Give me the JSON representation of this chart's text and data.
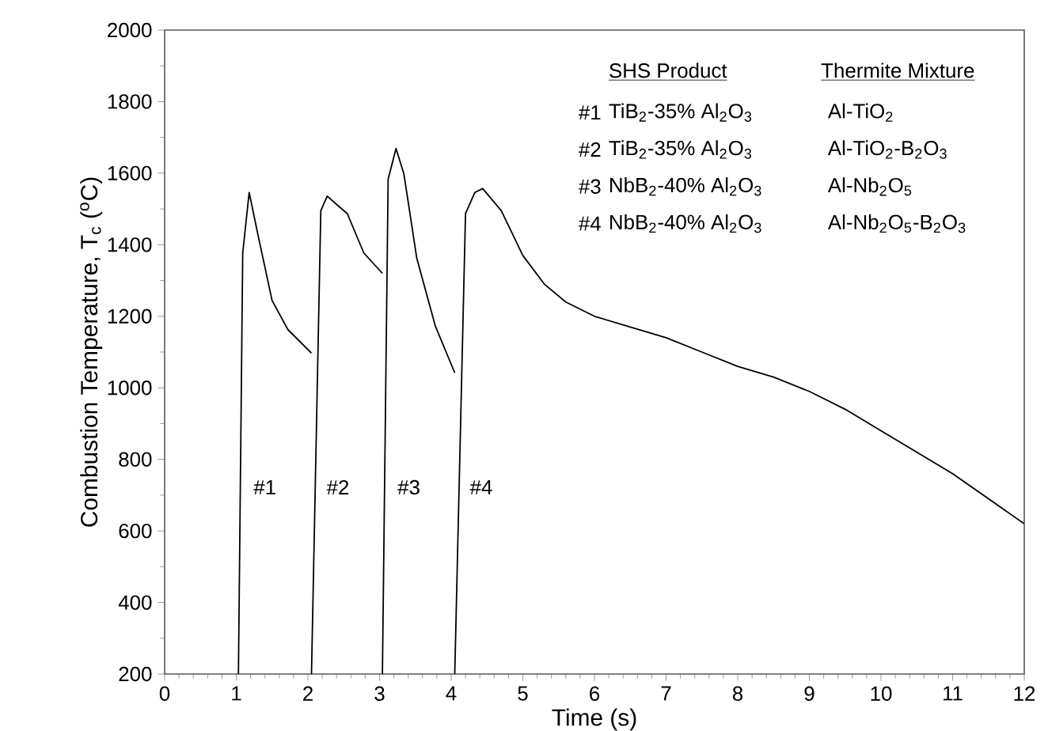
{
  "chart_data": {
    "type": "line",
    "xlabel": "Time (s)",
    "ylabel": "Combustion Temperature, T$_{c}$ ($^{o}$C)",
    "xlim": [
      0,
      12
    ],
    "ylim": [
      200,
      2000
    ],
    "xticks": [
      0,
      1,
      2,
      3,
      4,
      5,
      6,
      7,
      8,
      9,
      10,
      11,
      12
    ],
    "yticks": [
      200,
      400,
      600,
      800,
      1000,
      1200,
      1400,
      1600,
      1800,
      2000
    ],
    "grid": false,
    "marker": "none",
    "line_style": "solid",
    "series": [
      {
        "name": "#1",
        "color": "#000000",
        "x": [
          1.03,
          1.09,
          1.18,
          1.31,
          1.5,
          1.72,
          2.05
        ],
        "values": [
          200,
          1377,
          1546,
          1421,
          1244,
          1163,
          1097
        ]
      },
      {
        "name": "#2",
        "color": "#000000",
        "x": [
          2.05,
          2.18,
          2.27,
          2.42,
          2.55,
          2.78,
          3.04
        ],
        "values": [
          200,
          1495,
          1536,
          1509,
          1487,
          1377,
          1320
        ]
      },
      {
        "name": "#3",
        "color": "#000000",
        "x": [
          3.04,
          3.12,
          3.23,
          3.34,
          3.52,
          3.78,
          4.05
        ],
        "values": [
          200,
          1583,
          1669,
          1598,
          1362,
          1172,
          1042
        ]
      },
      {
        "name": "#4",
        "color": "#000000",
        "x": [
          4.05,
          4.2,
          4.33,
          4.44,
          4.7,
          5.0,
          5.3,
          5.6,
          6.0,
          6.5,
          7.0,
          7.5,
          8.0,
          8.5,
          9.0,
          9.5,
          10.0,
          10.5,
          11.0,
          11.5,
          12.0
        ],
        "values": [
          200,
          1487,
          1546,
          1557,
          1495,
          1370,
          1290,
          1240,
          1200,
          1170,
          1140,
          1100,
          1060,
          1030,
          990,
          940,
          880,
          820,
          760,
          690,
          620
        ]
      }
    ],
    "annotations": [
      "SHS Product",
      "Thermite Mixture",
      "#1",
      "TiB$_{2}$-35% Al$_{2}$O$_{3}$",
      "Al-TiO$_{2}$",
      "#2",
      "TiB$_{2}$-35% Al$_{2}$O$_{3}$",
      "Al-TiO$_{2}$-B$_{2}$O$_{3}$",
      "#3",
      "NbB$_{2}$-40% Al$_{2}$O$_{3}$",
      "Al-Nb$_{2}$O$_{5}$",
      "#4",
      "NbB$_{2}$-40% Al$_{2}$O$_{3}$",
      "Al-Nb$_{2}$O$_{5}$-B$_{2}$O$_{3}$"
    ]
  }
}
